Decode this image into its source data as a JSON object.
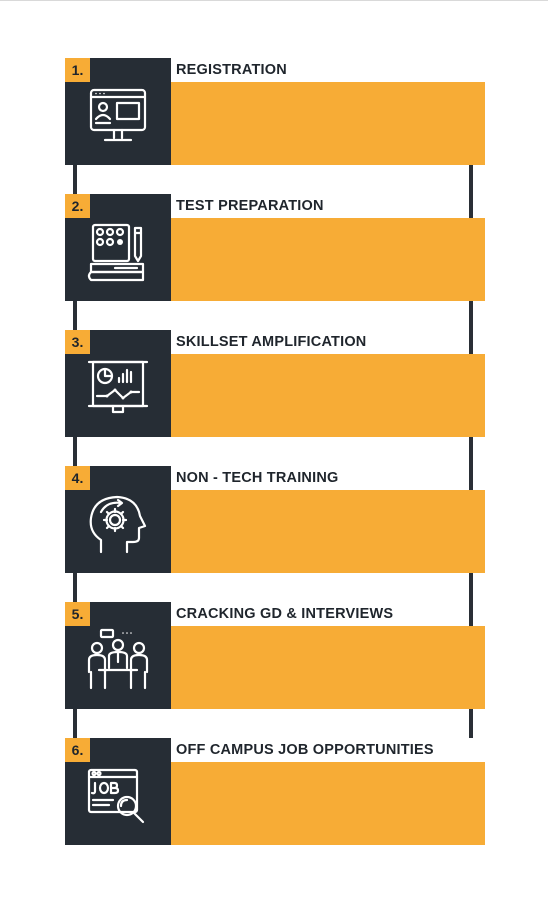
{
  "colors": {
    "accent": "#f7ac36",
    "dark": "#262d35",
    "text": "#1f252c"
  },
  "steps": [
    {
      "number": "1.",
      "title": "REGISTRATION",
      "icon": "registration-form-icon"
    },
    {
      "number": "2.",
      "title": "TEST PREPARATION",
      "icon": "test-book-icon"
    },
    {
      "number": "3.",
      "title": "SKILLSET AMPLIFICATION",
      "icon": "presentation-chart-icon"
    },
    {
      "number": "4.",
      "title": "NON - TECH TRAINING",
      "icon": "head-gear-icon"
    },
    {
      "number": "5.",
      "title": "CRACKING GD & INTERVIEWS",
      "icon": "group-discussion-icon"
    },
    {
      "number": "6.",
      "title": "OFF CAMPUS JOB OPPORTUNITIES",
      "icon": "job-search-icon"
    }
  ]
}
